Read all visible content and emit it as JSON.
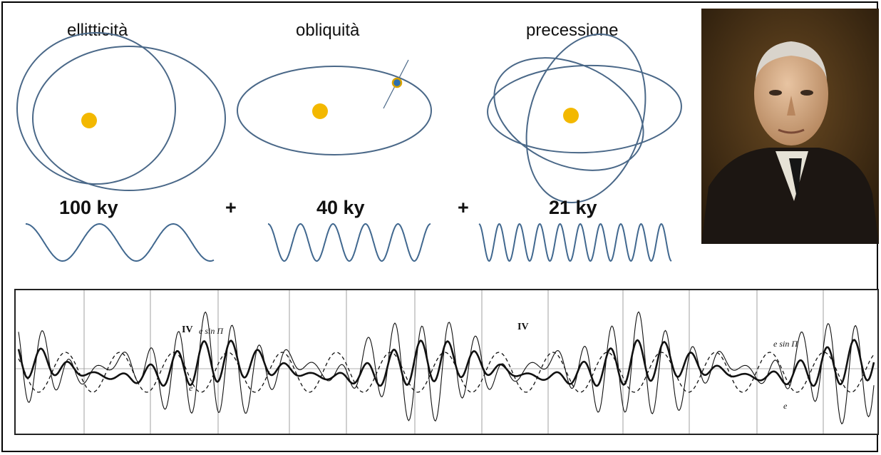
{
  "labels": {
    "ellipticity": "ellitticità",
    "obliquity": "obliquità",
    "precession": "precessione"
  },
  "periods": {
    "ellipticity": "100 ky",
    "obliquity": "40 ky",
    "precession": "21 ky",
    "plus": "+"
  },
  "chart_annotations": {
    "iv_a": "IV",
    "esin_a": "e sin Π",
    "e_a": "e",
    "iv_b": "IV",
    "esin_b": "e sin Π",
    "e_b": "e"
  },
  "colors": {
    "orbit": "#4a6888",
    "sun": "#f3b800",
    "wave": "#41688f",
    "planet_ring": "#d9a300",
    "planet_core": "#2d6fae"
  },
  "icons": {
    "portrait": "man-portrait-icon",
    "sun": "sun-icon",
    "planet": "planet-icon"
  },
  "chart_data": {
    "type": "line",
    "series": [
      {
        "name": "IV"
      },
      {
        "name": "e sin Π"
      },
      {
        "name": "e"
      }
    ],
    "grid": true
  }
}
